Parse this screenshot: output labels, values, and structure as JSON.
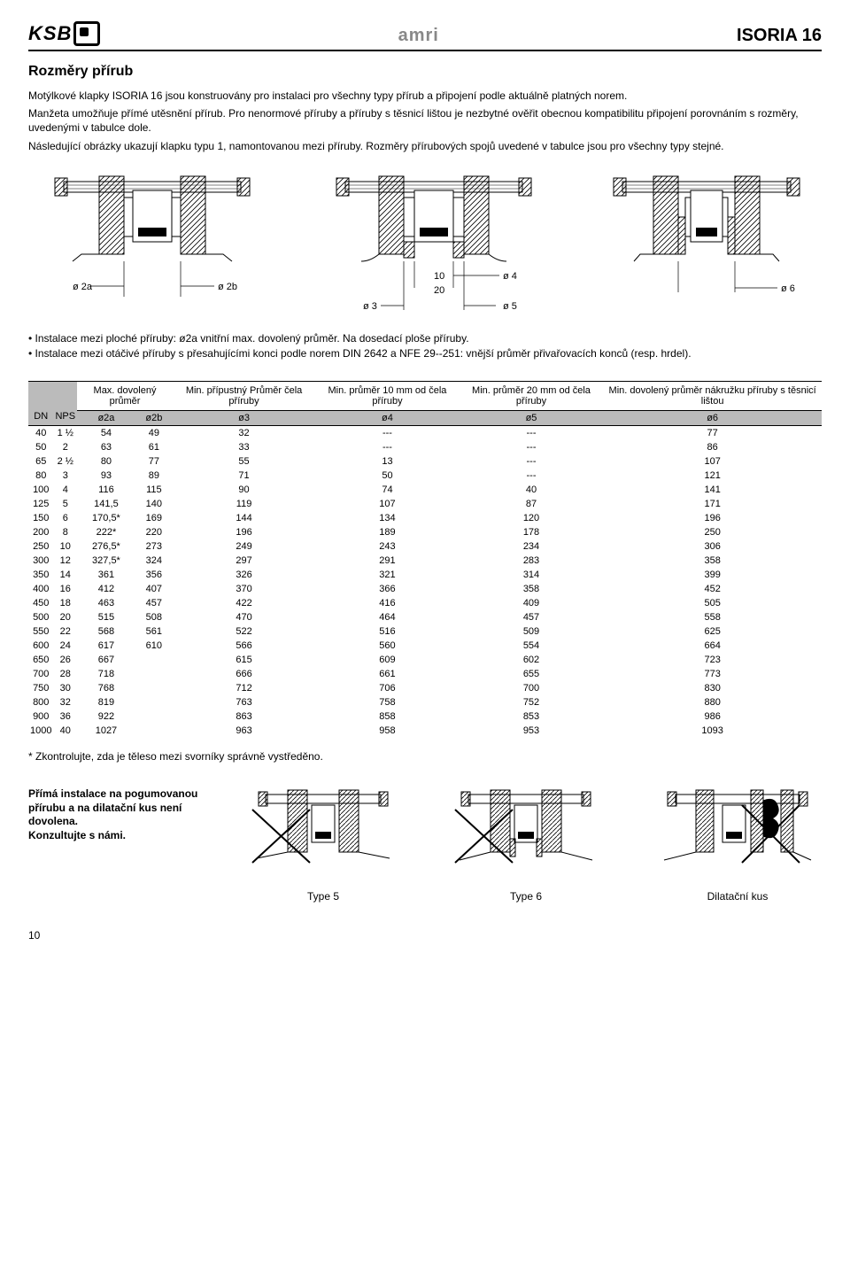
{
  "header": {
    "logo_left": "KSB",
    "logo_mid": "amri",
    "logo_right": "ISORIA 16"
  },
  "title": "Rozměry přírub",
  "intro": {
    "p1": "Motýlkové klapky ISORIA 16 jsou konstruovány pro instalaci pro všechny typy přírub a připojení podle aktuálně platných norem.",
    "p2": "Manžeta umožňuje přímé utěsnění přírub. Pro nenormové příruby a příruby s těsnicí lištou je nezbytné ověřit obecnou kompatibilitu připojení porovnáním s rozměry, uvedenými v tabulce dole.",
    "p3": "Následující obrázky ukazují klapku typu 1, namontovanou mezi příruby. Rozměry přírubových spojů uvedené v tabulce jsou pro všechny typy stejné."
  },
  "diag_labels": {
    "d2a": "ø 2a",
    "d2b": "ø 2b",
    "d3": "ø 3",
    "d4": "ø 4",
    "d5": "ø 5",
    "d6": "ø 6",
    "l10": "10",
    "l20": "20"
  },
  "bullets": {
    "b1": "• Instalace mezi ploché příruby: ø2a vnitřní max. dovolený průměr. Na dosedací ploše příruby.",
    "b2": "• Instalace mezi otáčivé příruby s přesahujícími konci podle norem DIN 2642 a NFE 29--251: vnější průměr přivařovacích konců (resp. hrdel)."
  },
  "table": {
    "group_headers": [
      "",
      "",
      "Max. dovolený průměr",
      "Min. přípustný Průměr čela příruby",
      "Min. průměr 10 mm od čela příruby",
      "Min. průměr 20 mm od čela příruby",
      "Min. dovolený průměr nákružku příruby s těsnicí lištou"
    ],
    "col_headers": [
      "DN",
      "NPS",
      "ø2a",
      "ø2b",
      "ø3",
      "ø4",
      "ø5",
      "ø6"
    ],
    "rows": [
      [
        "40",
        "1 ½",
        "54",
        "49",
        "32",
        "---",
        "---",
        "77"
      ],
      [
        "50",
        "2",
        "63",
        "61",
        "33",
        "---",
        "---",
        "86"
      ],
      [
        "65",
        "2 ½",
        "80",
        "77",
        "55",
        "13",
        "---",
        "107"
      ],
      [
        "80",
        "3",
        "93",
        "89",
        "71",
        "50",
        "---",
        "121"
      ],
      [
        "100",
        "4",
        "116",
        "115",
        "90",
        "74",
        "40",
        "141"
      ],
      [
        "125",
        "5",
        "141,5",
        "140",
        "119",
        "107",
        "87",
        "171"
      ],
      [
        "150",
        "6",
        "170,5*",
        "169",
        "144",
        "134",
        "120",
        "196"
      ],
      [
        "200",
        "8",
        "222*",
        "220",
        "196",
        "189",
        "178",
        "250"
      ],
      [
        "250",
        "10",
        "276,5*",
        "273",
        "249",
        "243",
        "234",
        "306"
      ],
      [
        "300",
        "12",
        "327,5*",
        "324",
        "297",
        "291",
        "283",
        "358"
      ],
      [
        "350",
        "14",
        "361",
        "356",
        "326",
        "321",
        "314",
        "399"
      ],
      [
        "400",
        "16",
        "412",
        "407",
        "370",
        "366",
        "358",
        "452"
      ],
      [
        "450",
        "18",
        "463",
        "457",
        "422",
        "416",
        "409",
        "505"
      ],
      [
        "500",
        "20",
        "515",
        "508",
        "470",
        "464",
        "457",
        "558"
      ],
      [
        "550",
        "22",
        "568",
        "561",
        "522",
        "516",
        "509",
        "625"
      ],
      [
        "600",
        "24",
        "617",
        "610",
        "566",
        "560",
        "554",
        "664"
      ],
      [
        "650",
        "26",
        "667",
        "",
        "615",
        "609",
        "602",
        "723"
      ],
      [
        "700",
        "28",
        "718",
        "",
        "666",
        "661",
        "655",
        "773"
      ],
      [
        "750",
        "30",
        "768",
        "",
        "712",
        "706",
        "700",
        "830"
      ],
      [
        "800",
        "32",
        "819",
        "",
        "763",
        "758",
        "752",
        "880"
      ],
      [
        "900",
        "36",
        "922",
        "",
        "863",
        "858",
        "853",
        "986"
      ],
      [
        "1000",
        "40",
        "1027",
        "",
        "963",
        "958",
        "953",
        "1093"
      ]
    ]
  },
  "footnote": "* Zkontrolujte, zda je těleso mezi svorníky správně vystředěno.",
  "bottom": {
    "text1": "Přímá instalace na pogumovanou přírubu a na dilatační kus není dovolena.",
    "text2": "Konzultujte s námi.",
    "type5": "Type 5",
    "type6": "Type 6",
    "dilat": "Dilatační kus"
  },
  "pagenum": "10"
}
